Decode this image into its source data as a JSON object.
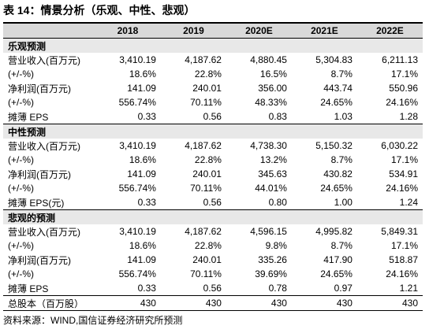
{
  "title": "表 14：情景分析（乐观、中性、悲观）",
  "table": {
    "header": [
      "2018",
      "2019",
      "2020E",
      "2021E",
      "2022E"
    ],
    "sections": [
      {
        "title": "乐观预测",
        "rows": [
          [
            "营业收入(百万元)",
            "3,410.19",
            "4,187.62",
            "4,880.45",
            "5,304.83",
            "6,211.13"
          ],
          [
            "(+/-%)",
            "18.6%",
            "22.8%",
            "16.5%",
            "8.7%",
            "17.1%"
          ],
          [
            "净利润(百万元)",
            "141.09",
            "240.01",
            "356.00",
            "443.74",
            "550.96"
          ],
          [
            "(+/-%)",
            "556.74%",
            "70.11%",
            "48.33%",
            "24.65%",
            "24.16%"
          ],
          [
            "摊薄 EPS",
            "0.33",
            "0.56",
            "0.83",
            "1.03",
            "1.28"
          ]
        ]
      },
      {
        "title": "中性预测",
        "rows": [
          [
            "营业收入(百万元)",
            "3,410.19",
            "4,187.62",
            "4,738.30",
            "5,150.32",
            "6,030.22"
          ],
          [
            "(+/-%)",
            "18.6%",
            "22.8%",
            "13.2%",
            "8.7%",
            "17.1%"
          ],
          [
            "净利润(百万元)",
            "141.09",
            "240.01",
            "345.63",
            "430.82",
            "534.91"
          ],
          [
            "(+/-%)",
            "556.74%",
            "70.11%",
            "44.01%",
            "24.65%",
            "24.16%"
          ],
          [
            "摊薄 EPS(元)",
            "0.33",
            "0.56",
            "0.80",
            "1.00",
            "1.24"
          ]
        ]
      },
      {
        "title": "悲观的预测",
        "rows": [
          [
            "营业收入(百万元)",
            "3,410.19",
            "4,187.62",
            "4,596.15",
            "4,995.82",
            "5,849.31"
          ],
          [
            "(+/-%)",
            "18.6%",
            "22.8%",
            "9.8%",
            "8.7%",
            "17.1%"
          ],
          [
            "净利润(百万元)",
            "141.09",
            "240.01",
            "335.26",
            "417.90",
            "518.87"
          ],
          [
            "(+/-%)",
            "556.74%",
            "70.11%",
            "39.69%",
            "24.65%",
            "24.16%"
          ],
          [
            "摊薄 EPS",
            "0.33",
            "0.56",
            "0.78",
            "0.97",
            "1.21"
          ]
        ]
      }
    ],
    "total": [
      "总股本（百万股）",
      "430",
      "430",
      "430",
      "430",
      "430"
    ]
  },
  "source": "资料来源：WIND,国信证券经济研究所预测"
}
